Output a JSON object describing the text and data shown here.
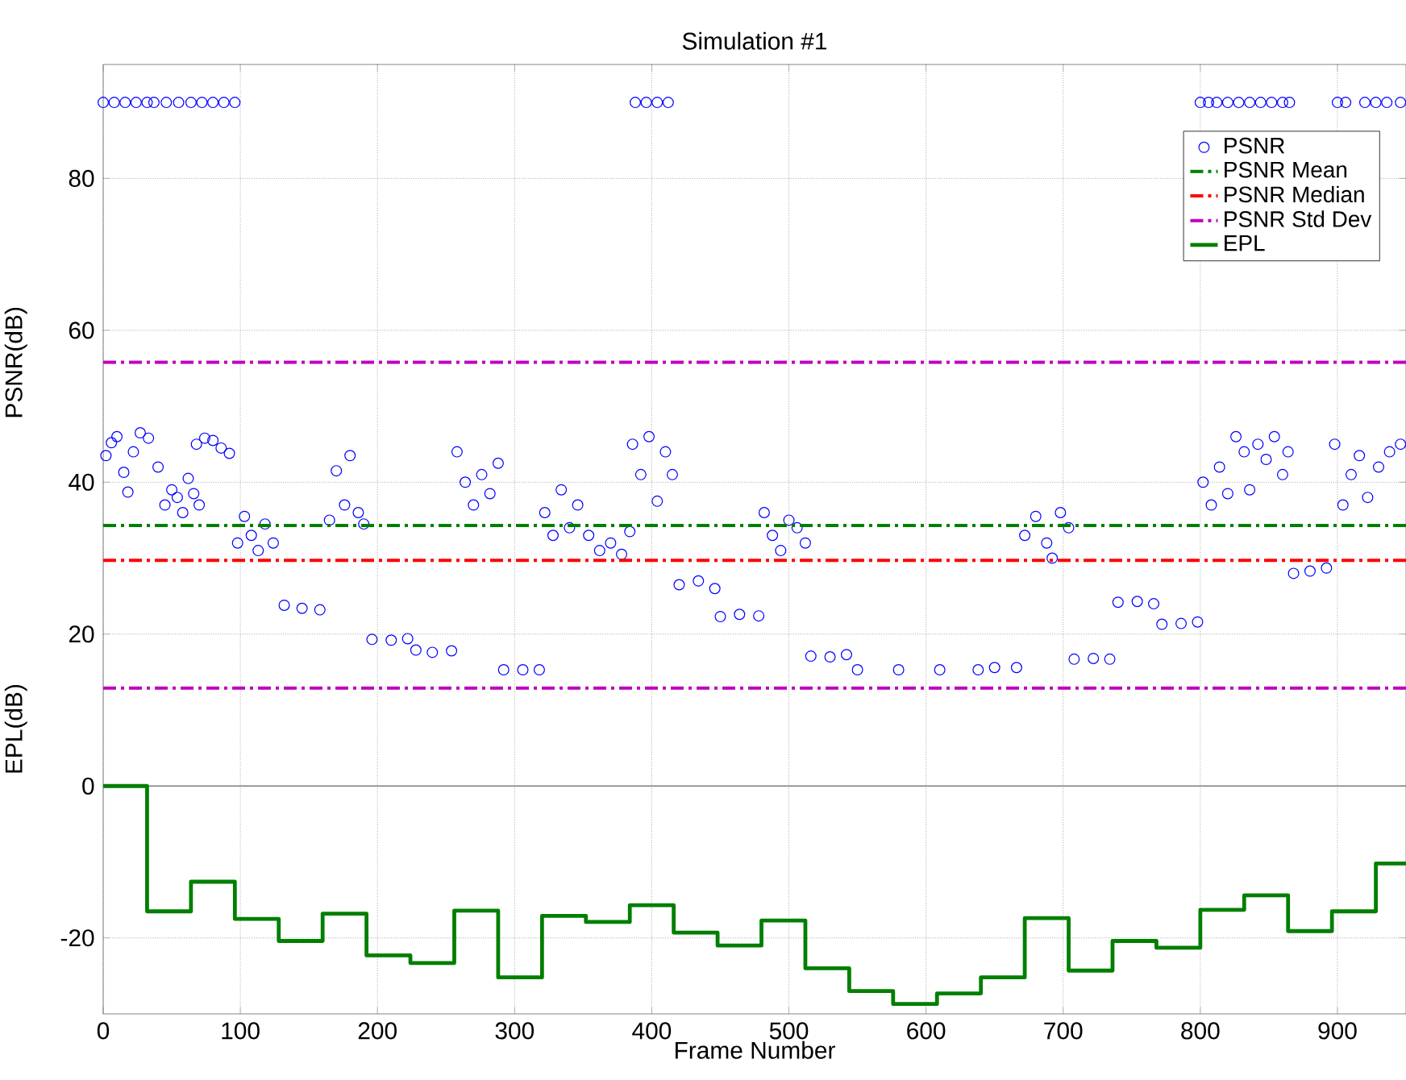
{
  "chart_data": {
    "type": "scatter",
    "title": "Simulation #1",
    "xlabel": "Frame Number",
    "ylabel": "PSNR(dB)",
    "annotations": [
      "EPL(dB)"
    ],
    "xlim": [
      0,
      950
    ],
    "ylim": [
      -30,
      95
    ],
    "xticks": [
      0,
      100,
      200,
      300,
      400,
      500,
      600,
      700,
      800,
      900
    ],
    "yticks": [
      -20,
      0,
      20,
      40,
      60,
      80
    ],
    "grid": true,
    "legend": "top right",
    "ref_lines": [
      {
        "axis": "y",
        "value": 34.3,
        "label": "PSNR Mean",
        "color": "#008000",
        "line_style": "dashdot"
      },
      {
        "axis": "y",
        "value": 29.7,
        "label": "PSNR Median",
        "color": "#ff0000",
        "line_style": "dashdot"
      },
      {
        "axis": "y",
        "value": 55.8,
        "label": "PSNR Std Dev",
        "color": "#bf00bf",
        "line_style": "dashdot"
      },
      {
        "axis": "y",
        "value": 12.9,
        "color": "#bf00bf",
        "line_style": "dashdot"
      },
      {
        "axis": "y",
        "value": 0,
        "color": "#808080",
        "line_style": "solid"
      }
    ],
    "series": [
      {
        "name": "PSNR",
        "color": "#0000ff",
        "marker": "circle",
        "x": [
          0,
          8,
          16,
          24,
          32,
          37,
          46,
          55,
          64,
          72,
          80,
          88,
          96,
          388,
          396,
          404,
          412,
          800,
          806,
          812,
          820,
          828,
          836,
          844,
          852,
          860,
          865,
          900,
          906,
          920,
          928,
          936,
          946,
          2,
          6,
          10,
          15,
          18,
          22,
          27,
          33,
          40,
          45,
          50,
          54,
          58,
          62,
          66,
          70,
          68,
          74,
          80,
          86,
          92,
          98,
          103,
          108,
          113,
          118,
          124,
          132,
          145,
          158,
          165,
          170,
          176,
          180,
          186,
          190,
          196,
          210,
          222,
          228,
          240,
          254,
          258,
          264,
          270,
          276,
          282,
          288,
          292,
          306,
          318,
          322,
          328,
          334,
          340,
          346,
          354,
          362,
          370,
          378,
          384,
          386,
          392,
          398,
          404,
          410,
          415,
          420,
          434,
          446,
          450,
          464,
          478,
          482,
          488,
          494,
          500,
          506,
          512,
          516,
          530,
          542,
          550,
          580,
          610,
          638,
          650,
          666,
          672,
          680,
          688,
          692,
          698,
          704,
          708,
          722,
          734,
          740,
          754,
          766,
          772,
          786,
          798,
          802,
          808,
          814,
          820,
          826,
          832,
          836,
          842,
          848,
          854,
          860,
          864,
          868,
          880,
          892,
          898,
          904,
          910,
          916,
          922,
          930,
          938,
          946
        ],
        "values": [
          90,
          90,
          90,
          90,
          90,
          90,
          90,
          90,
          90,
          90,
          90,
          90,
          90,
          90,
          90,
          90,
          90,
          90,
          90,
          90,
          90,
          90,
          90,
          90,
          90,
          90,
          90,
          90,
          90,
          90,
          90,
          90,
          90,
          43.5,
          45.2,
          46,
          41.3,
          38.7,
          44,
          46.5,
          45.8,
          42,
          37,
          39,
          38,
          36,
          40.5,
          38.5,
          37,
          45,
          45.8,
          45.5,
          44.5,
          43.8,
          32,
          35.5,
          33,
          31,
          34.5,
          32,
          23.8,
          23.4,
          23.2,
          35,
          41.5,
          37,
          43.5,
          36,
          34.5,
          19.3,
          19.2,
          19.4,
          17.9,
          17.6,
          17.8,
          44,
          40,
          37,
          41,
          38.5,
          42.5,
          15.3,
          15.3,
          15.3,
          36,
          33,
          39,
          34,
          37,
          33,
          31,
          32,
          30.5,
          33.5,
          45,
          41,
          46,
          37.5,
          44,
          41,
          26.5,
          27,
          26,
          22.3,
          22.6,
          22.4,
          36,
          33,
          31,
          35,
          34,
          32,
          17.1,
          17,
          17.3,
          15.3,
          15.3,
          15.3,
          15.3,
          15.6,
          15.6,
          33,
          35.5,
          32,
          30,
          36,
          34,
          16.7,
          16.8,
          16.7,
          24.2,
          24.3,
          24,
          21.3,
          21.4,
          21.6,
          40,
          37,
          42,
          38.5,
          46,
          44,
          39,
          45,
          43,
          46,
          41,
          44,
          28,
          28.3,
          28.7,
          45,
          37,
          41,
          43.5,
          38,
          42,
          44,
          45
        ]
      },
      {
        "name": "EPL",
        "type": "step",
        "color": "#007f00",
        "line_style": "solid",
        "x": [
          0,
          32,
          64,
          96,
          128,
          160,
          192,
          224,
          256,
          288,
          320,
          352,
          384,
          416,
          448,
          480,
          512,
          544,
          576,
          608,
          640,
          672,
          704,
          736,
          768,
          800,
          832,
          864,
          896,
          928,
          950
        ],
        "values": [
          0,
          -16.5,
          -12.6,
          -17.5,
          -20.4,
          -16.8,
          -22.3,
          -23.3,
          -16.4,
          -25.2,
          -17.1,
          -17.9,
          -15.7,
          -19.3,
          -21,
          -17.7,
          -24,
          -27,
          -28.7,
          -27.3,
          -25.2,
          -17.4,
          -24.3,
          -20.4,
          -21.3,
          -16.3,
          -14.4,
          -19.1,
          -16.5,
          -10.2,
          -10.2
        ]
      }
    ]
  }
}
